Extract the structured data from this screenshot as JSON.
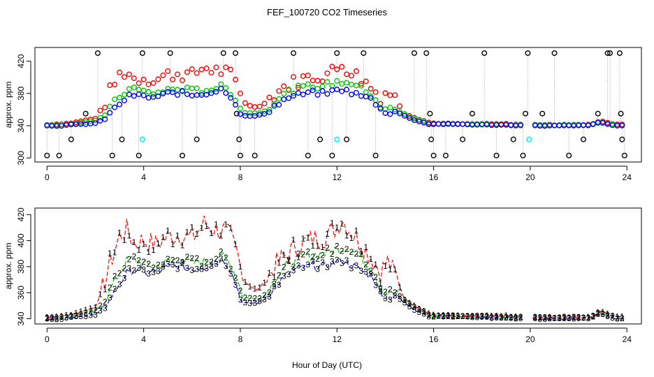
{
  "figure": {
    "title": "FEF_100720  CO2 Timeseries",
    "xlabel": "Hour of Day (UTC)"
  },
  "colors": {
    "series1": "#ff0000",
    "series2": "#00cc00",
    "series3": "#0000ff",
    "outlier": "#000000",
    "flagged": "#00e5ee",
    "connector": "#888888"
  },
  "chart_data": [
    {
      "type": "scatter",
      "ylabel": "approx. ppm",
      "xlim": [
        -0.5,
        24.6
      ],
      "ylim": [
        295,
        437
      ],
      "x_ticks": [
        0,
        4,
        8,
        12,
        16,
        20,
        24
      ],
      "y_ticks": [
        300,
        340,
        380,
        420
      ],
      "grid": false,
      "legend": "none",
      "outlier_points": [
        {
          "x": 0.0,
          "y": 303
        },
        {
          "x": 0.5,
          "y": 303
        },
        {
          "x": 1.0,
          "y": 323
        },
        {
          "x": 1.6,
          "y": 355
        },
        {
          "x": 2.1,
          "y": 430
        },
        {
          "x": 2.7,
          "y": 303
        },
        {
          "x": 3.1,
          "y": 323
        },
        {
          "x": 3.8,
          "y": 303
        },
        {
          "x": 3.95,
          "y": 430
        },
        {
          "x": 5.1,
          "y": 430
        },
        {
          "x": 5.6,
          "y": 303
        },
        {
          "x": 6.2,
          "y": 323
        },
        {
          "x": 7.3,
          "y": 430
        },
        {
          "x": 7.8,
          "y": 430
        },
        {
          "x": 7.85,
          "y": 355
        },
        {
          "x": 7.95,
          "y": 323
        },
        {
          "x": 8.0,
          "y": 303
        },
        {
          "x": 8.6,
          "y": 303
        },
        {
          "x": 10.2,
          "y": 430
        },
        {
          "x": 10.8,
          "y": 303
        },
        {
          "x": 11.3,
          "y": 323
        },
        {
          "x": 11.8,
          "y": 303
        },
        {
          "x": 12.0,
          "y": 430
        },
        {
          "x": 12.4,
          "y": 323
        },
        {
          "x": 13.1,
          "y": 430
        },
        {
          "x": 13.6,
          "y": 303
        },
        {
          "x": 15.2,
          "y": 430
        },
        {
          "x": 15.7,
          "y": 430
        },
        {
          "x": 15.85,
          "y": 355
        },
        {
          "x": 15.9,
          "y": 323
        },
        {
          "x": 16.0,
          "y": 303
        },
        {
          "x": 16.5,
          "y": 303
        },
        {
          "x": 17.2,
          "y": 323
        },
        {
          "x": 17.6,
          "y": 355
        },
        {
          "x": 18.1,
          "y": 430
        },
        {
          "x": 18.6,
          "y": 303
        },
        {
          "x": 19.3,
          "y": 323
        },
        {
          "x": 19.7,
          "y": 303
        },
        {
          "x": 19.8,
          "y": 355
        },
        {
          "x": 19.9,
          "y": 430
        },
        {
          "x": 20.5,
          "y": 355
        },
        {
          "x": 21.0,
          "y": 430
        },
        {
          "x": 21.6,
          "y": 303
        },
        {
          "x": 22.2,
          "y": 323
        },
        {
          "x": 22.8,
          "y": 355
        },
        {
          "x": 23.2,
          "y": 430
        },
        {
          "x": 23.3,
          "y": 430
        },
        {
          "x": 23.7,
          "y": 430
        },
        {
          "x": 23.75,
          "y": 355
        },
        {
          "x": 23.8,
          "y": 323
        },
        {
          "x": 23.9,
          "y": 303
        }
      ],
      "flagged_points": [
        {
          "x": 3.95,
          "y": 323
        },
        {
          "x": 12.0,
          "y": 323
        },
        {
          "x": 19.95,
          "y": 323
        }
      ]
    },
    {
      "type": "line",
      "ylabel": "approx. ppm",
      "xlim": [
        -0.5,
        24.6
      ],
      "ylim": [
        336,
        425
      ],
      "x_ticks": [
        0,
        4,
        8,
        12,
        16,
        20,
        24
      ],
      "y_ticks": [
        340,
        360,
        380,
        400,
        420
      ],
      "grid": false,
      "legend": "none",
      "series": [
        {
          "label": "1",
          "color": "#ff0000"
        },
        {
          "label": "2",
          "color": "#00cc00"
        },
        {
          "label": "3",
          "color": "#0000ff"
        }
      ],
      "anchors": {
        "x": [
          0,
          0.5,
          1,
          1.5,
          2,
          2.3,
          2.6,
          3,
          3.3,
          3.6,
          4,
          4.5,
          5,
          5.5,
          6,
          6.5,
          7,
          7.3,
          7.6,
          7.9,
          8.1,
          8.4,
          8.7,
          9,
          9.5,
          10,
          10.5,
          11,
          11.5,
          12,
          12.2,
          12.5,
          13,
          13.5,
          13.8,
          14.1,
          14.4,
          14.8,
          15.3,
          15.8,
          16,
          17,
          18,
          19,
          19.9,
          20,
          21,
          22,
          22.5,
          22.9,
          23.2,
          23.5,
          23.9
        ],
        "y1": [
          341,
          342,
          343,
          346,
          349,
          363,
          382,
          403,
          408,
          398,
          400,
          397,
          403,
          405,
          402,
          413,
          408,
          408,
          402,
          388,
          370,
          365,
          362,
          368,
          382,
          391,
          397,
          401,
          403,
          410,
          417,
          409,
          398,
          385,
          376,
          384,
          374,
          355,
          349,
          344,
          343,
          342,
          342,
          342,
          341,
          341,
          341,
          341,
          341,
          346,
          344,
          342,
          341
        ],
        "y2": [
          341,
          341,
          342,
          344,
          346,
          352,
          362,
          376,
          384,
          386,
          382,
          380,
          384,
          386,
          383,
          384,
          387,
          388,
          382,
          370,
          356,
          356,
          355,
          358,
          373,
          382,
          387,
          389,
          390,
          394,
          394,
          395,
          386,
          378,
          364,
          360,
          360,
          354,
          348,
          343,
          342,
          342,
          342,
          341,
          341,
          341,
          341,
          341,
          341,
          345,
          343,
          341,
          340
        ],
        "y3": [
          340,
          340,
          341,
          342,
          343,
          347,
          355,
          367,
          375,
          378,
          376,
          375,
          380,
          381,
          378,
          380,
          383,
          386,
          377,
          362,
          352,
          352,
          352,
          355,
          366,
          375,
          379,
          381,
          380,
          384,
          385,
          382,
          377,
          372,
          360,
          356,
          358,
          352,
          346,
          342,
          342,
          342,
          341,
          341,
          340,
          340,
          340,
          340,
          341,
          344,
          342,
          340,
          340
        ]
      }
    }
  ],
  "axis_labels": {
    "top_ylabel": "approx. ppm",
    "bottom_ylabel": "approx. ppm",
    "top_x_ticks": [
      "0",
      "4",
      "8",
      "12",
      "16",
      "20",
      "24"
    ],
    "top_y_ticks": [
      "300",
      "340",
      "380",
      "420"
    ],
    "bottom_x_ticks": [
      "0",
      "4",
      "8",
      "12",
      "16",
      "20",
      "24"
    ],
    "bottom_y_ticks": [
      "340",
      "360",
      "380",
      "400",
      "420"
    ]
  }
}
